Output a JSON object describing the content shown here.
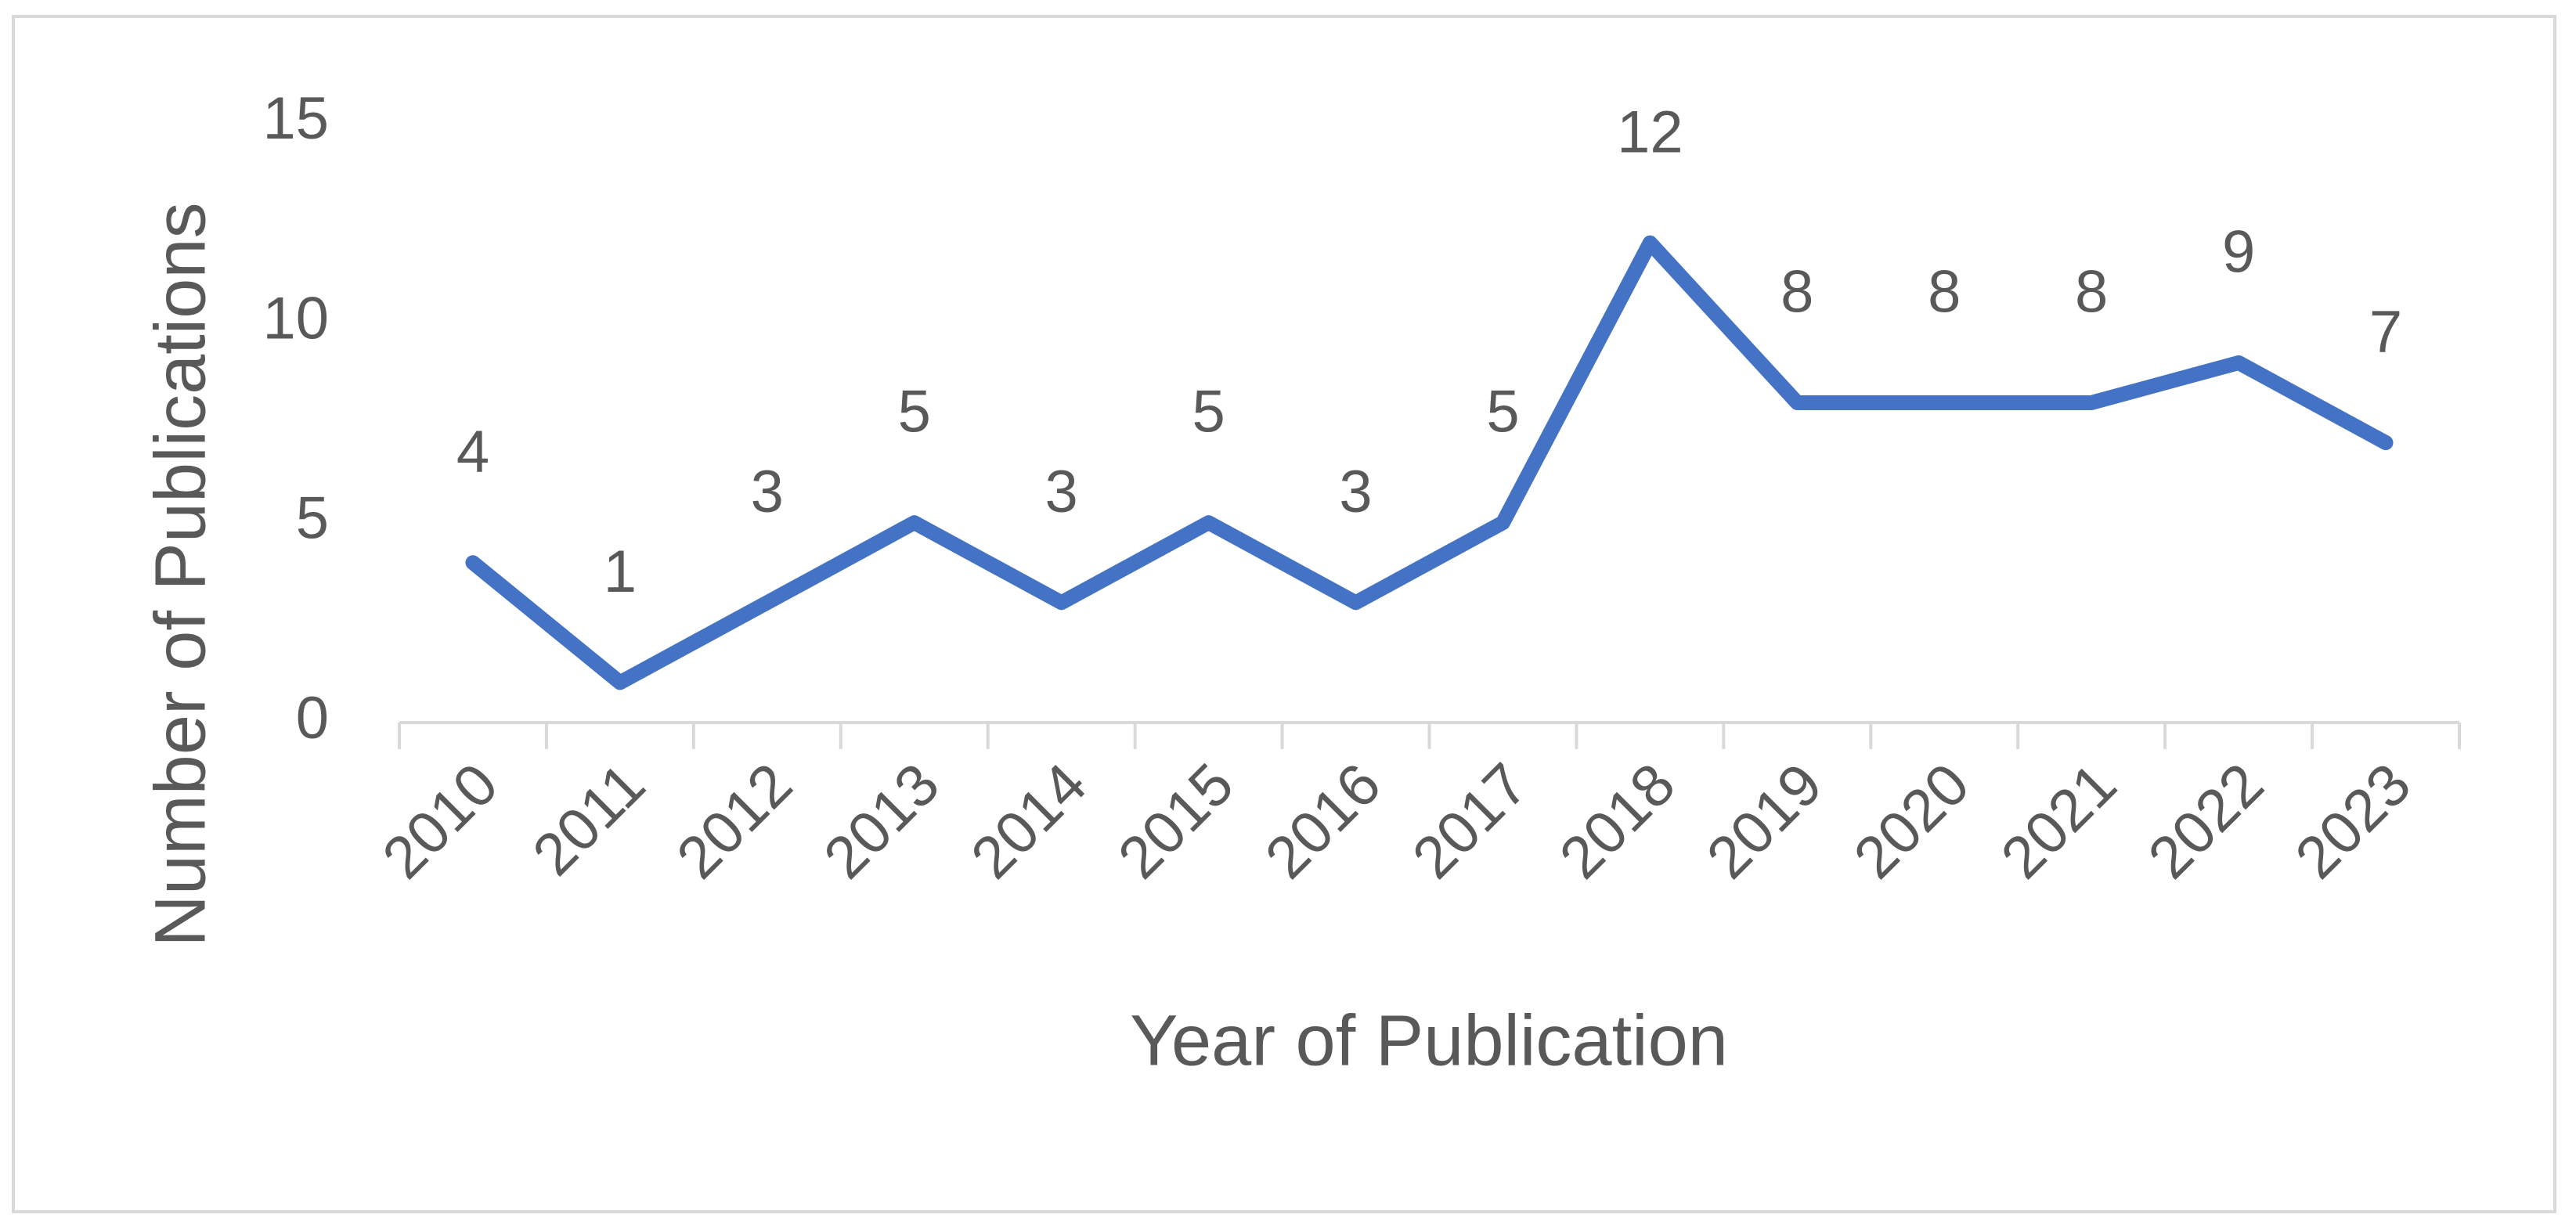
{
  "chart_data": {
    "type": "line",
    "x_label": "Year of Publication",
    "y_label": "Number of Publications",
    "categories": [
      "2010",
      "2011",
      "2012",
      "2013",
      "2014",
      "2015",
      "2016",
      "2017",
      "2018",
      "2019",
      "2020",
      "2021",
      "2022",
      "2023"
    ],
    "values": [
      4,
      1,
      3,
      5,
      3,
      5,
      3,
      5,
      12,
      8,
      8,
      8,
      9,
      7
    ],
    "color": "#4472c4",
    "ylim": [
      0,
      15
    ],
    "yticks": [
      0,
      5,
      10,
      15
    ],
    "grid": false,
    "data_labels": true
  }
}
